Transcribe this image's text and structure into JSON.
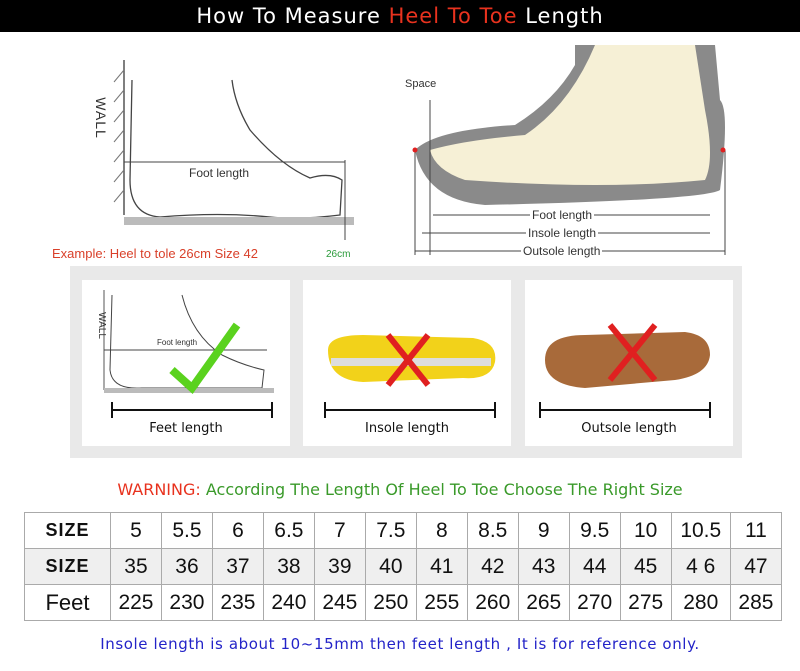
{
  "title": {
    "pre": "How To Measure ",
    "highlight": "Heel To Toe",
    "post": " Length"
  },
  "diagram_left": {
    "wall": "WALL",
    "foot_length": "Foot length",
    "example": "Example: Heel to tole 26cm Size 42",
    "mark": "26cm"
  },
  "diagram_right": {
    "space": "Space",
    "foot_length": "Foot length",
    "insole_length": "Insole length",
    "outsole_length": "Outsole length"
  },
  "cards": [
    {
      "caption": "Feet length",
      "wall": "WALL",
      "foot_length": "Foot length",
      "status": "correct"
    },
    {
      "caption": "Insole length",
      "status": "wrong"
    },
    {
      "caption": "Outsole length",
      "status": "wrong"
    }
  ],
  "warning": {
    "label": "WARNING:",
    "text": "According The Length Of Heel To Toe Choose The Right Size"
  },
  "table": {
    "rows": [
      {
        "header": "SIZE",
        "cells": [
          "5",
          "5.5",
          "6",
          "6.5",
          "7",
          "7.5",
          "8",
          "8.5",
          "9",
          "9.5",
          "10",
          "10.5",
          "11"
        ]
      },
      {
        "header": "SIZE",
        "cells": [
          "35",
          "36",
          "37",
          "38",
          "39",
          "40",
          "41",
          "42",
          "43",
          "44",
          "45",
          "4 6",
          "47"
        ]
      },
      {
        "header": "Feet",
        "cells": [
          "225",
          "230",
          "235",
          "240",
          "245",
          "250",
          "255",
          "260",
          "265",
          "270",
          "275",
          "280",
          "285"
        ]
      }
    ]
  },
  "footnote": "Insole length is about 10~15mm then feet length , It is for reference only.",
  "colors": {
    "accent_red": "#e8321e",
    "warning_green": "#3a9a2a",
    "footnote_blue": "#2323c8",
    "check_green": "#5ad21e",
    "cross_red": "#e02020"
  }
}
